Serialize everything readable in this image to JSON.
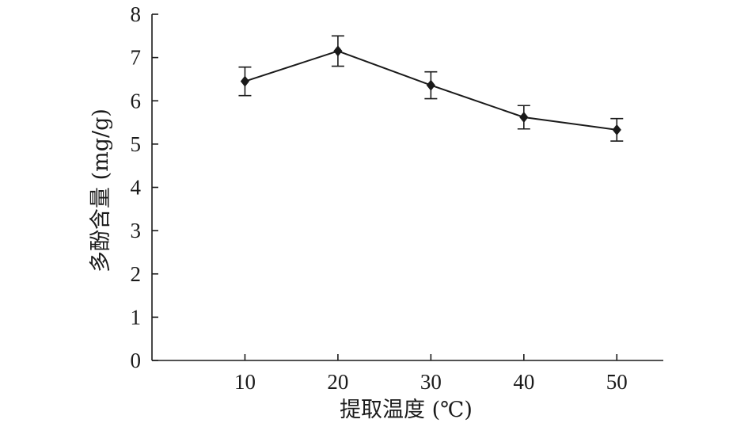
{
  "chart_data": {
    "type": "line",
    "xlabel": "提取温度 (℃)",
    "ylabel": "多酚含量 (mg/g)",
    "x": [
      10,
      20,
      30,
      40,
      50
    ],
    "x_ticks": [
      "10",
      "20",
      "30",
      "40",
      "50"
    ],
    "y_ticks": [
      "0",
      "1",
      "2",
      "3",
      "4",
      "5",
      "6",
      "7",
      "8"
    ],
    "xlim": [
      0,
      55
    ],
    "ylim": [
      0,
      8
    ],
    "grid": false,
    "legend": "none",
    "series": [
      {
        "values": [
          6.45,
          7.15,
          6.36,
          5.62,
          5.33
        ],
        "error": [
          0.33,
          0.35,
          0.31,
          0.27,
          0.26
        ],
        "marker": "diamond",
        "color": "#1a1a1a"
      }
    ]
  }
}
